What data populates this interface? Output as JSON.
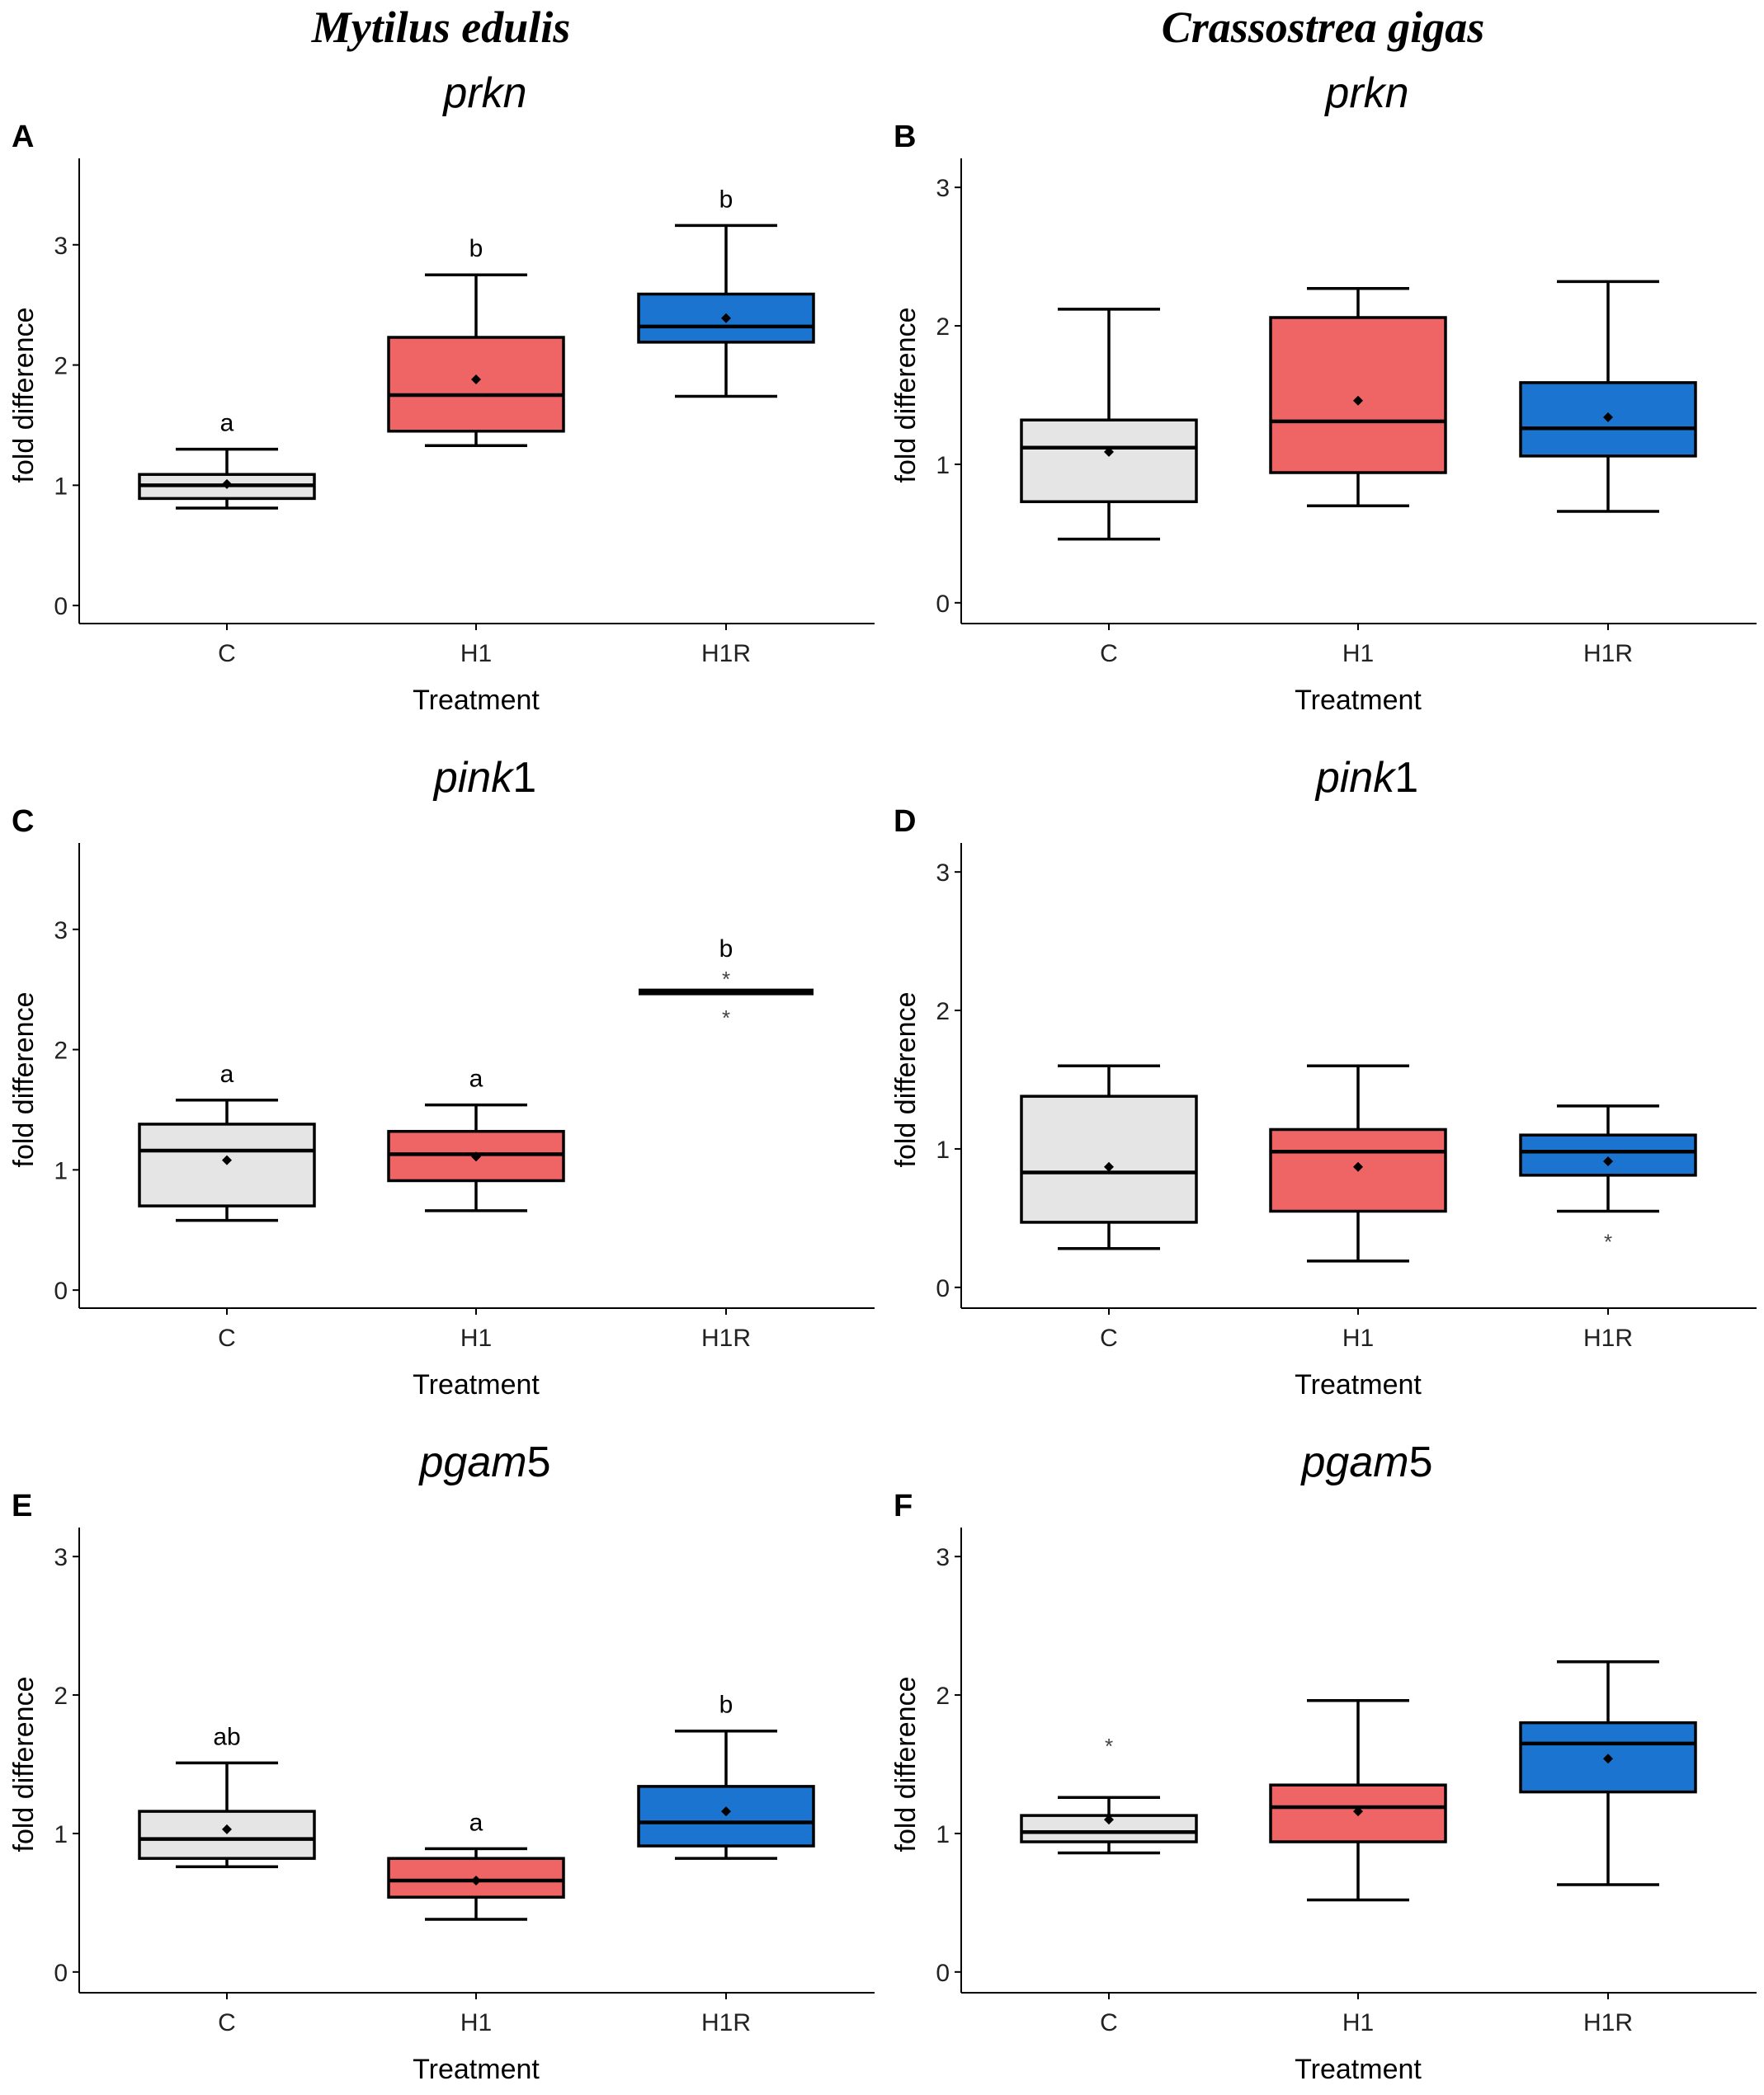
{
  "column_titles": [
    "Mytilus edulis",
    "Crassostrea gigas"
  ],
  "colors": {
    "C": "#e5e5e5",
    "H1": "#ef6566",
    "H1R": "#1b75d0",
    "line": "#000000"
  },
  "chart_data": [
    {
      "type": "box",
      "panel_label": "A",
      "species": "Mytilus edulis",
      "title_italic": "prkn",
      "title_plain": "",
      "xlabel": "Treatment",
      "ylabel": "fold difference",
      "categories": [
        "C",
        "H1",
        "H1R"
      ],
      "yticks": [
        0,
        1,
        2,
        3
      ],
      "ylim": [
        -0.15,
        3.65
      ],
      "boxes": [
        {
          "group": "C",
          "whisker_low": 0.81,
          "q1": 0.89,
          "median": 1.0,
          "q3": 1.09,
          "whisker_high": 1.3,
          "mean": 1.01,
          "letter": "a",
          "outliers": []
        },
        {
          "group": "H1",
          "whisker_low": 1.33,
          "q1": 1.45,
          "median": 1.75,
          "q3": 2.23,
          "whisker_high": 2.75,
          "mean": 1.88,
          "letter": "b",
          "outliers": []
        },
        {
          "group": "H1R",
          "whisker_low": 1.74,
          "q1": 2.19,
          "median": 2.32,
          "q3": 2.59,
          "whisker_high": 3.16,
          "mean": 2.39,
          "letter": "b",
          "outliers": []
        }
      ]
    },
    {
      "type": "box",
      "panel_label": "B",
      "species": "Crassostrea gigas",
      "title_italic": "prkn",
      "title_plain": "",
      "xlabel": "Treatment",
      "ylabel": "fold difference",
      "categories": [
        "C",
        "H1",
        "H1R"
      ],
      "yticks": [
        0,
        1,
        2,
        3
      ],
      "ylim": [
        -0.15,
        3.15
      ],
      "boxes": [
        {
          "group": "C",
          "whisker_low": 0.46,
          "q1": 0.73,
          "median": 1.12,
          "q3": 1.32,
          "whisker_high": 2.12,
          "mean": 1.09,
          "letter": "",
          "outliers": []
        },
        {
          "group": "H1",
          "whisker_low": 0.7,
          "q1": 0.94,
          "median": 1.31,
          "q3": 2.06,
          "whisker_high": 2.27,
          "mean": 1.46,
          "letter": "",
          "outliers": []
        },
        {
          "group": "H1R",
          "whisker_low": 0.66,
          "q1": 1.06,
          "median": 1.26,
          "q3": 1.59,
          "whisker_high": 2.32,
          "mean": 1.34,
          "letter": "",
          "outliers": []
        }
      ]
    },
    {
      "type": "box",
      "panel_label": "C",
      "species": "Mytilus edulis",
      "title_italic": "pink",
      "title_plain": "1",
      "xlabel": "Treatment",
      "ylabel": "fold difference",
      "categories": [
        "C",
        "H1",
        "H1R"
      ],
      "yticks": [
        0,
        1,
        2,
        3
      ],
      "ylim": [
        -0.15,
        3.65
      ],
      "boxes": [
        {
          "group": "C",
          "whisker_low": 0.58,
          "q1": 0.7,
          "median": 1.16,
          "q3": 1.38,
          "whisker_high": 1.58,
          "mean": 1.08,
          "letter": "a",
          "outliers": []
        },
        {
          "group": "H1",
          "whisker_low": 0.66,
          "q1": 0.91,
          "median": 1.13,
          "q3": 1.32,
          "whisker_high": 1.54,
          "mean": 1.11,
          "letter": "a",
          "outliers": []
        },
        {
          "group": "H1R",
          "whisker_low": 2.48,
          "q1": 2.48,
          "median": 2.48,
          "q3": 2.48,
          "whisker_high": 2.48,
          "mean": 2.48,
          "letter": "b",
          "outliers": [
            2.62,
            2.3
          ]
        }
      ]
    },
    {
      "type": "box",
      "panel_label": "D",
      "species": "Crassostrea gigas",
      "title_italic": "pink",
      "title_plain": "1",
      "xlabel": "Treatment",
      "ylabel": "fold difference",
      "categories": [
        "C",
        "H1",
        "H1R"
      ],
      "yticks": [
        0,
        1,
        2,
        3
      ],
      "ylim": [
        -0.15,
        3.15
      ],
      "boxes": [
        {
          "group": "C",
          "whisker_low": 0.28,
          "q1": 0.47,
          "median": 0.83,
          "q3": 1.38,
          "whisker_high": 1.6,
          "mean": 0.87,
          "letter": "",
          "outliers": []
        },
        {
          "group": "H1",
          "whisker_low": 0.19,
          "q1": 0.55,
          "median": 0.98,
          "q3": 1.14,
          "whisker_high": 1.6,
          "mean": 0.87,
          "letter": "",
          "outliers": []
        },
        {
          "group": "H1R",
          "whisker_low": 0.55,
          "q1": 0.81,
          "median": 0.98,
          "q3": 1.1,
          "whisker_high": 1.31,
          "mean": 0.91,
          "letter": "",
          "outliers": [
            0.36
          ]
        }
      ]
    },
    {
      "type": "box",
      "panel_label": "E",
      "species": "Mytilus edulis",
      "title_italic": "pgam",
      "title_plain": "5",
      "xlabel": "Treatment",
      "ylabel": "fold difference",
      "categories": [
        "C",
        "H1",
        "H1R"
      ],
      "yticks": [
        0,
        1,
        2,
        3
      ],
      "ylim": [
        -0.15,
        3.15
      ],
      "boxes": [
        {
          "group": "C",
          "whisker_low": 0.76,
          "q1": 0.82,
          "median": 0.96,
          "q3": 1.16,
          "whisker_high": 1.51,
          "mean": 1.03,
          "letter": "ab",
          "outliers": []
        },
        {
          "group": "H1",
          "whisker_low": 0.38,
          "q1": 0.54,
          "median": 0.66,
          "q3": 0.82,
          "whisker_high": 0.89,
          "mean": 0.66,
          "letter": "a",
          "outliers": []
        },
        {
          "group": "H1R",
          "whisker_low": 0.82,
          "q1": 0.91,
          "median": 1.08,
          "q3": 1.34,
          "whisker_high": 1.74,
          "mean": 1.16,
          "letter": "b",
          "outliers": []
        }
      ]
    },
    {
      "type": "box",
      "panel_label": "F",
      "species": "Crassostrea gigas",
      "title_italic": "pgam",
      "title_plain": "5",
      "xlabel": "Treatment",
      "ylabel": "fold difference",
      "categories": [
        "C",
        "H1",
        "H1R"
      ],
      "yticks": [
        0,
        1,
        2,
        3
      ],
      "ylim": [
        -0.15,
        3.15
      ],
      "boxes": [
        {
          "group": "C",
          "whisker_low": 0.86,
          "q1": 0.94,
          "median": 1.01,
          "q3": 1.13,
          "whisker_high": 1.26,
          "mean": 1.1,
          "letter": "",
          "outliers": [
            1.66
          ]
        },
        {
          "group": "H1",
          "whisker_low": 0.52,
          "q1": 0.94,
          "median": 1.19,
          "q3": 1.35,
          "whisker_high": 1.96,
          "mean": 1.16,
          "letter": "",
          "outliers": []
        },
        {
          "group": "H1R",
          "whisker_low": 0.63,
          "q1": 1.3,
          "median": 1.65,
          "q3": 1.8,
          "whisker_high": 2.24,
          "mean": 1.54,
          "letter": "",
          "outliers": []
        }
      ]
    }
  ]
}
